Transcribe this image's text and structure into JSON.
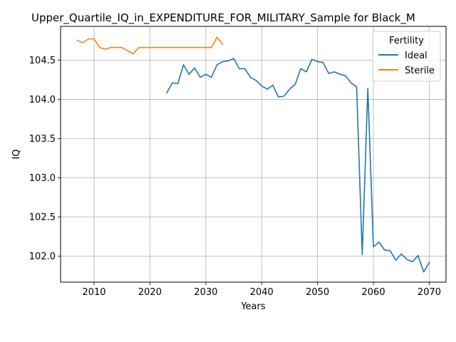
{
  "chart_data": {
    "type": "line",
    "title": "Upper_Quartile_IQ_in_EXPENDITURE_FOR_MILITARY_Sample for Black_M",
    "xlabel": "Years",
    "ylabel": "IQ",
    "xlim": [
      2004,
      2073
    ],
    "ylim": [
      101.67,
      104.93
    ],
    "xticks": [
      2010,
      2020,
      2030,
      2040,
      2050,
      2060,
      2070
    ],
    "yticks": [
      102.0,
      102.5,
      103.0,
      103.5,
      104.0,
      104.5
    ],
    "grid": true,
    "legend": {
      "title": "Fertility",
      "position": "top-right"
    },
    "series": [
      {
        "name": "Ideal",
        "color": "#1f77b4",
        "x": [
          2023,
          2024,
          2025,
          2026,
          2027,
          2028,
          2029,
          2030,
          2031,
          2032,
          2033,
          2034,
          2035,
          2036,
          2037,
          2038,
          2039,
          2040,
          2041,
          2042,
          2043,
          2044,
          2045,
          2046,
          2047,
          2048,
          2049,
          2050,
          2051,
          2052,
          2053,
          2054,
          2055,
          2056,
          2057,
          2058,
          2059,
          2060,
          2061,
          2062,
          2063,
          2064,
          2065,
          2066,
          2067,
          2068,
          2069,
          2070
        ],
        "y": [
          104.08,
          104.21,
          104.2,
          104.44,
          104.32,
          104.4,
          104.28,
          104.32,
          104.28,
          104.44,
          104.48,
          104.49,
          104.52,
          104.39,
          104.39,
          104.28,
          104.24,
          104.17,
          104.13,
          104.18,
          104.03,
          104.04,
          104.13,
          104.19,
          104.39,
          104.35,
          104.51,
          104.48,
          104.47,
          104.33,
          104.35,
          104.32,
          104.3,
          104.21,
          104.16,
          102.02,
          104.14,
          102.12,
          102.18,
          102.08,
          102.07,
          101.95,
          102.03,
          101.96,
          101.93,
          102.01,
          101.8,
          101.92
        ]
      },
      {
        "name": "Sterile",
        "color": "#ff7f0e",
        "x": [
          2007,
          2008,
          2009,
          2010,
          2011,
          2012,
          2013,
          2014,
          2015,
          2016,
          2017,
          2018,
          2019,
          2020,
          2021,
          2022,
          2023,
          2024,
          2025,
          2026,
          2027,
          2028,
          2029,
          2030,
          2031,
          2032,
          2033
        ],
        "y": [
          104.75,
          104.72,
          104.77,
          104.77,
          104.66,
          104.64,
          104.66,
          104.66,
          104.66,
          104.62,
          104.58,
          104.66,
          104.66,
          104.66,
          104.66,
          104.66,
          104.66,
          104.66,
          104.66,
          104.66,
          104.66,
          104.66,
          104.66,
          104.66,
          104.66,
          104.79,
          104.7
        ]
      }
    ]
  }
}
